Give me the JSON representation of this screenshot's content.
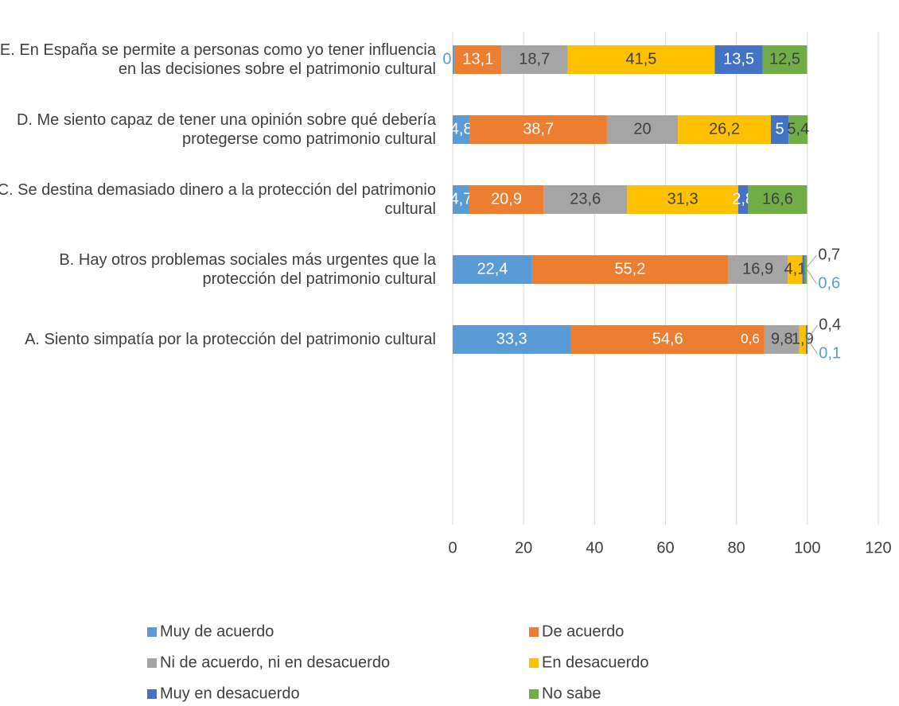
{
  "chart_data": {
    "type": "stacked_bar_horizontal",
    "categories": [
      "E. En España se permite a personas como yo tener influencia en las decisiones sobre el patrimonio cultural",
      "D. Me siento capaz de tener una opinión sobre qué debería protegerse como patrimonio cultural",
      "C. Se destina demasiado dinero a la protección del patrimonio cultural",
      "B. Hay otros problemas sociales más urgentes que la protección del patrimonio cultural",
      "A. Siento simpatía por la protección del patrimonio cultural"
    ],
    "series": [
      {
        "name": "Muy de acuerdo",
        "color": "#5b9bd5",
        "values": [
          0.6,
          4.8,
          4.7,
          22.4,
          33.3
        ],
        "value_labels": [
          "0,6",
          "4,8",
          "4,7",
          "22,4",
          "33,3"
        ]
      },
      {
        "name": "De acuerdo",
        "color": "#ed7d31",
        "values": [
          13.1,
          38.7,
          20.9,
          55.2,
          54.6
        ],
        "value_labels": [
          "13,1",
          "38,7",
          "20,9",
          "55,2",
          "54,6"
        ]
      },
      {
        "name": "Ni de acuerdo, ni en desacuerdo",
        "color": "#a5a5a5",
        "values": [
          18.7,
          20,
          23.6,
          16.9,
          9.8
        ],
        "value_labels": [
          "18,7",
          "20",
          "23,6",
          "16,9",
          "9,8"
        ]
      },
      {
        "name": "En desacuerdo",
        "color": "#ffc000",
        "values": [
          41.5,
          26.2,
          31.3,
          4.1,
          1.9
        ],
        "value_labels": [
          "41,5",
          "26,2",
          "31,3",
          "4,1",
          "1,9"
        ]
      },
      {
        "name": "Muy en desacuerdo",
        "color": "#4472c4",
        "values": [
          13.5,
          5,
          2.8,
          0.7,
          0.4
        ],
        "value_labels": [
          "13,5",
          "5",
          "2,8",
          "0,7",
          "0,4"
        ]
      },
      {
        "name": "No sabe",
        "color": "#70ad47",
        "values": [
          12.5,
          5.4,
          16.6,
          0.6,
          0.1
        ],
        "value_labels": [
          "12,5",
          "5,4",
          "16,6",
          "0,6",
          "0,1"
        ]
      }
    ],
    "annotations": [
      "0,6"
    ],
    "xlim": [
      0,
      120
    ],
    "xticks": [
      0,
      20,
      40,
      60,
      80,
      100,
      120
    ],
    "grid": true,
    "legend": "bottom"
  }
}
